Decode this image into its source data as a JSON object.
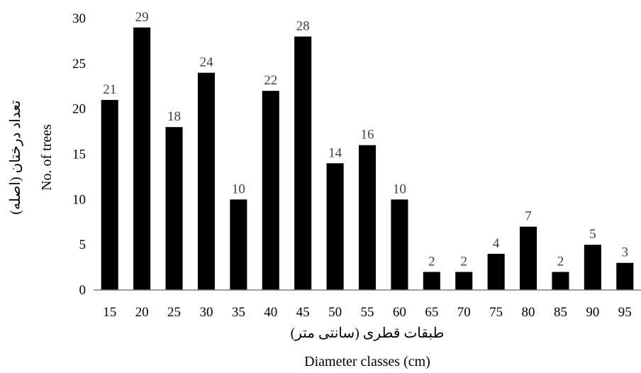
{
  "chart_data": {
    "type": "bar",
    "categories": [
      "15",
      "20",
      "25",
      "30",
      "35",
      "40",
      "45",
      "50",
      "55",
      "60",
      "65",
      "70",
      "75",
      "80",
      "85",
      "90",
      "95"
    ],
    "values": [
      21,
      29,
      18,
      24,
      10,
      22,
      28,
      14,
      16,
      10,
      2,
      2,
      4,
      7,
      2,
      5,
      3
    ],
    "ylim": [
      0,
      30
    ],
    "yticks": [
      "0",
      "5",
      "10",
      "15",
      "20",
      "25",
      "30"
    ],
    "xlabel_fa": "طبقات قطری (سانتی متر)",
    "xlabel_en": "Diameter classes (cm)",
    "ylabel_fa": "تعداد درختان (اصله)",
    "ylabel_en": "No. of trees",
    "grid": false,
    "bar_color": "#000000",
    "label_color": "#404040"
  }
}
